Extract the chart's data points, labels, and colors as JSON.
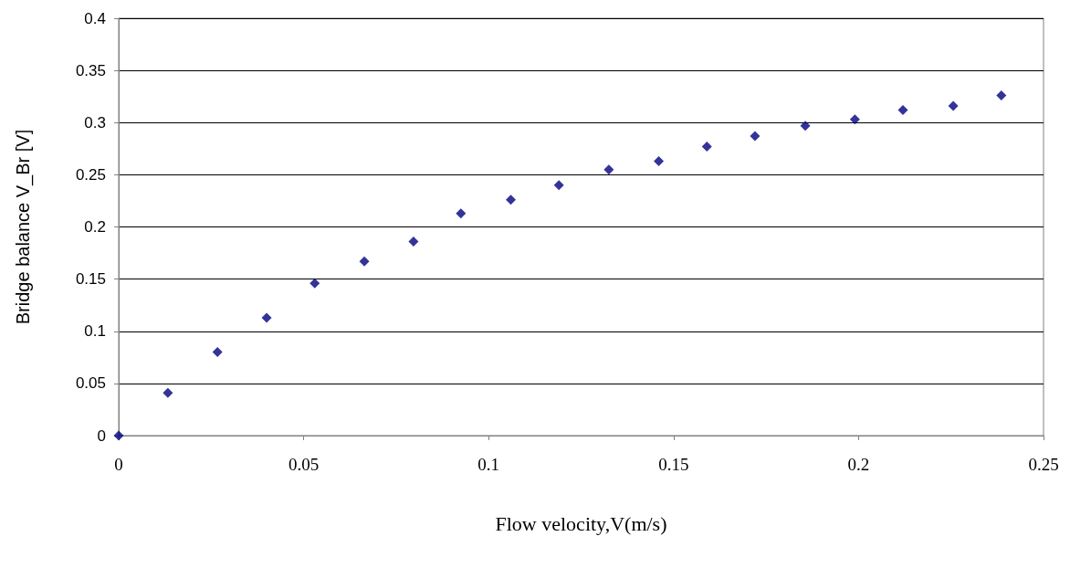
{
  "chart_data": {
    "type": "scatter",
    "xlabel": "Flow velocity,V(m/s)",
    "ylabel": "Bridge balance V_Br [V]",
    "series": [
      {
        "color": "#000080",
        "x": [
          0,
          0.0133,
          0.0267,
          0.04,
          0.053,
          0.0664,
          0.0797,
          0.0925,
          0.106,
          0.119,
          0.1325,
          0.146,
          0.159,
          0.172,
          0.1856,
          0.199,
          0.212,
          0.2256,
          0.2386
        ],
        "values": [
          0,
          0.041,
          0.08,
          0.113,
          0.146,
          0.167,
          0.186,
          0.213,
          0.226,
          0.24,
          0.255,
          0.263,
          0.277,
          0.287,
          0.297,
          0.303,
          0.312,
          0.316,
          0.326
        ]
      }
    ],
    "xlim": [
      0,
      0.25
    ],
    "xticks": [
      0,
      0.05,
      0.1,
      0.15,
      0.2,
      0.25
    ],
    "ylim": [
      0,
      0.4
    ],
    "yticks": [
      0,
      0.05,
      0.1,
      0.15,
      0.2,
      0.25,
      0.3,
      0.35,
      0.4
    ],
    "grid": "y",
    "marker": "diamond"
  }
}
